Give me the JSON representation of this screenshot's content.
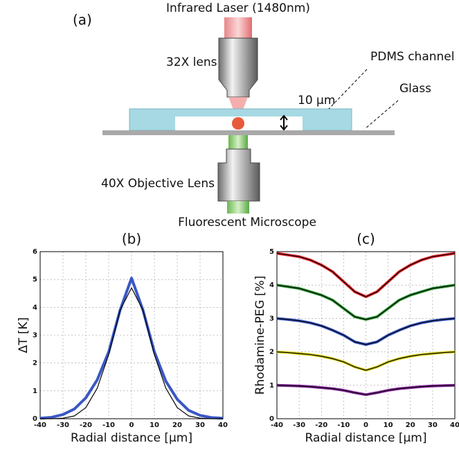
{
  "diagram": {
    "panel": "(a)",
    "laser": "Infrared Laser (1480nm)",
    "lens": "32X lens",
    "channel": "PDMS channel",
    "glass": "Glass",
    "gap": "10 μm",
    "objective": "40X Objective Lens",
    "microscope": "Fluorescent Microscope"
  },
  "chart_data": [
    {
      "type": "line",
      "title": "(b)",
      "xlabel": "Radial distance [μm]",
      "ylabel": "ΔT [K]",
      "x": [
        -40,
        -35,
        -30,
        -25,
        -20,
        -15,
        -10,
        -5,
        0,
        5,
        10,
        15,
        20,
        25,
        30,
        35,
        40
      ],
      "series": [
        {
          "color": "#3a57c4",
          "values": [
            0.02,
            0.05,
            0.15,
            0.35,
            0.75,
            1.4,
            2.4,
            3.9,
            5.05,
            3.9,
            2.4,
            1.35,
            0.7,
            0.3,
            0.12,
            0.04,
            0.02
          ]
        },
        {
          "color": "#000000",
          "values": [
            0,
            0,
            0.02,
            0.1,
            0.4,
            1.1,
            2.3,
            3.9,
            4.7,
            3.9,
            2.3,
            1.1,
            0.4,
            0.1,
            0.02,
            0,
            0
          ]
        }
      ],
      "xlim": [
        -40,
        40
      ],
      "ylim": [
        0,
        6
      ],
      "xticks": [
        -40,
        -30,
        -20,
        -10,
        0,
        10,
        20,
        30,
        40
      ],
      "yticks": [
        0,
        1,
        2,
        3,
        4,
        5,
        6
      ],
      "grid": true
    },
    {
      "type": "line",
      "title": "(c)",
      "xlabel": "Radial distance [μm]",
      "ylabel": "Rhodamine-PEG [%]",
      "x": [
        -40,
        -35,
        -30,
        -25,
        -20,
        -15,
        -10,
        -5,
        0,
        5,
        10,
        15,
        20,
        25,
        30,
        35,
        40
      ],
      "series": [
        {
          "color": "#e8242a",
          "values": [
            4.95,
            4.9,
            4.85,
            4.75,
            4.6,
            4.4,
            4.1,
            3.8,
            3.65,
            3.8,
            4.1,
            4.4,
            4.6,
            4.75,
            4.85,
            4.9,
            4.95
          ]
        },
        {
          "color": "#2e9a35",
          "values": [
            4.0,
            3.95,
            3.9,
            3.8,
            3.7,
            3.55,
            3.3,
            3.05,
            2.97,
            3.05,
            3.3,
            3.55,
            3.7,
            3.8,
            3.9,
            3.95,
            4.0
          ]
        },
        {
          "color": "#3a57c4",
          "values": [
            3.0,
            2.97,
            2.93,
            2.87,
            2.78,
            2.65,
            2.5,
            2.3,
            2.22,
            2.3,
            2.5,
            2.65,
            2.78,
            2.87,
            2.93,
            2.97,
            3.0
          ]
        },
        {
          "color": "#d9d420",
          "values": [
            2.0,
            1.98,
            1.95,
            1.92,
            1.87,
            1.8,
            1.7,
            1.55,
            1.45,
            1.55,
            1.7,
            1.8,
            1.87,
            1.92,
            1.95,
            1.98,
            2.0
          ]
        },
        {
          "color": "#8a2aa0",
          "values": [
            1.0,
            0.99,
            0.98,
            0.96,
            0.93,
            0.9,
            0.85,
            0.78,
            0.72,
            0.78,
            0.85,
            0.9,
            0.93,
            0.96,
            0.98,
            0.99,
            1.0
          ]
        }
      ],
      "xlim": [
        -40,
        40
      ],
      "ylim": [
        0,
        5
      ],
      "xticks": [
        -40,
        -30,
        -20,
        -10,
        0,
        10,
        20,
        30,
        40
      ],
      "yticks": [
        0,
        1,
        2,
        3,
        4,
        5
      ],
      "grid": true
    }
  ]
}
